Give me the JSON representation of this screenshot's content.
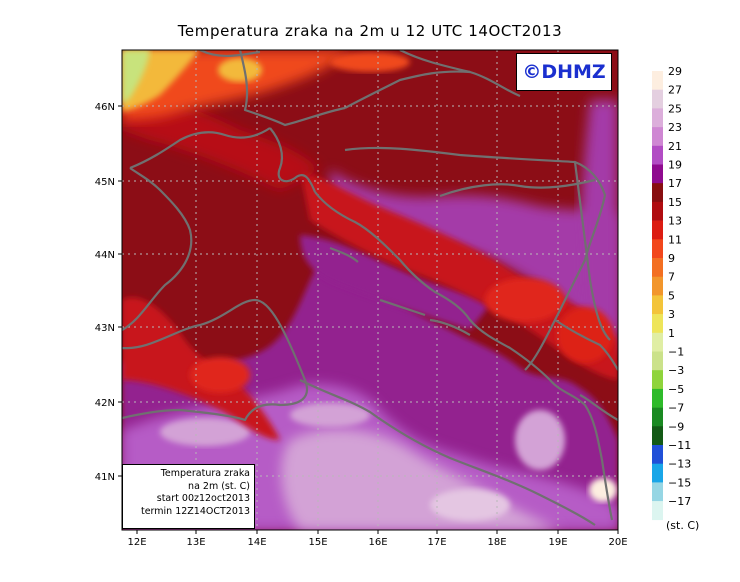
{
  "title": "Temperatura zraka na 2m u 12 UTC 14OCT2013",
  "logo": "©DHMZ",
  "info_box": {
    "line1": "Temperatura zraka",
    "line2": "na 2m (st. C)",
    "line3": "start 00z12oct2013",
    "line4": "termin 12Z14OCT2013"
  },
  "axes": {
    "lon_ticks": [
      "12E",
      "13E",
      "14E",
      "15E",
      "16E",
      "17E",
      "18E",
      "19E",
      "20E"
    ],
    "lat_ticks": [
      "46N",
      "45N",
      "44N",
      "43N",
      "42N",
      "41N"
    ]
  },
  "colorbar": {
    "unit": "(st. C)",
    "labels": [
      "29",
      "27",
      "25",
      "23",
      "21",
      "19",
      "17",
      "15",
      "13",
      "11",
      "9",
      "7",
      "5",
      "3",
      "1",
      "−1",
      "−3",
      "−5",
      "−7",
      "−9",
      "−11",
      "−13",
      "−15",
      "−17"
    ],
    "colors": [
      "#fdeee0",
      "#e4cfe0",
      "#dcaedb",
      "#cf87d3",
      "#b24cc4",
      "#8f0a8f",
      "#880e10",
      "#b00c10",
      "#dc1c12",
      "#f2471c",
      "#f36f22",
      "#f2962c",
      "#f3c43a",
      "#eee55a",
      "#e0eea4",
      "#cbe28a",
      "#8fd43c",
      "#2ebb2a",
      "#1a8a22",
      "#135a16",
      "#2050d8",
      "#19a6e8",
      "#96d6e4",
      "#dcf5f0"
    ]
  },
  "map_colors": {
    "background": "#8c0d16",
    "coast": "#707070",
    "grid": "#b8b8b8"
  }
}
